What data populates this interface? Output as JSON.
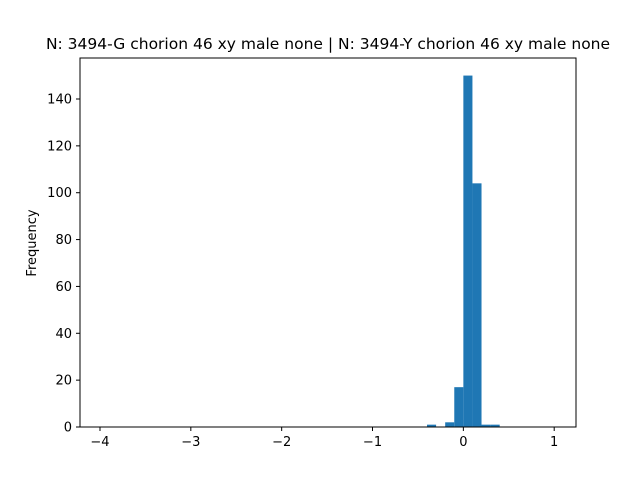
{
  "chart_data": {
    "type": "bar",
    "title": "N: 3494-G chorion 46 xy male none | N: 3494-Y chorion 46 xy male none",
    "xlabel": "",
    "ylabel": "Frequency",
    "xlim": [
      -4.22,
      1.24
    ],
    "ylim": [
      0,
      157.5
    ],
    "xticks": [
      -4,
      -3,
      -2,
      -1,
      0,
      1
    ],
    "xtick_labels": [
      "−4",
      "−3",
      "−2",
      "−1",
      "0",
      "1"
    ],
    "yticks": [
      0,
      20,
      40,
      60,
      80,
      100,
      120,
      140
    ],
    "ytick_labels": [
      "0",
      "20",
      "40",
      "60",
      "80",
      "100",
      "120",
      "140"
    ],
    "grid": false,
    "legend": "none",
    "bar_color": "#1f77b4",
    "bins": [
      {
        "x0": -0.4,
        "x1": -0.3,
        "count": 1
      },
      {
        "x0": -0.2,
        "x1": -0.1,
        "count": 2
      },
      {
        "x0": -0.1,
        "x1": 0.0,
        "count": 17
      },
      {
        "x0": 0.0,
        "x1": 0.1,
        "count": 150
      },
      {
        "x0": 0.1,
        "x1": 0.2,
        "count": 104
      },
      {
        "x0": 0.2,
        "x1": 0.3,
        "count": 1
      },
      {
        "x0": 0.3,
        "x1": 0.4,
        "count": 1
      }
    ]
  }
}
